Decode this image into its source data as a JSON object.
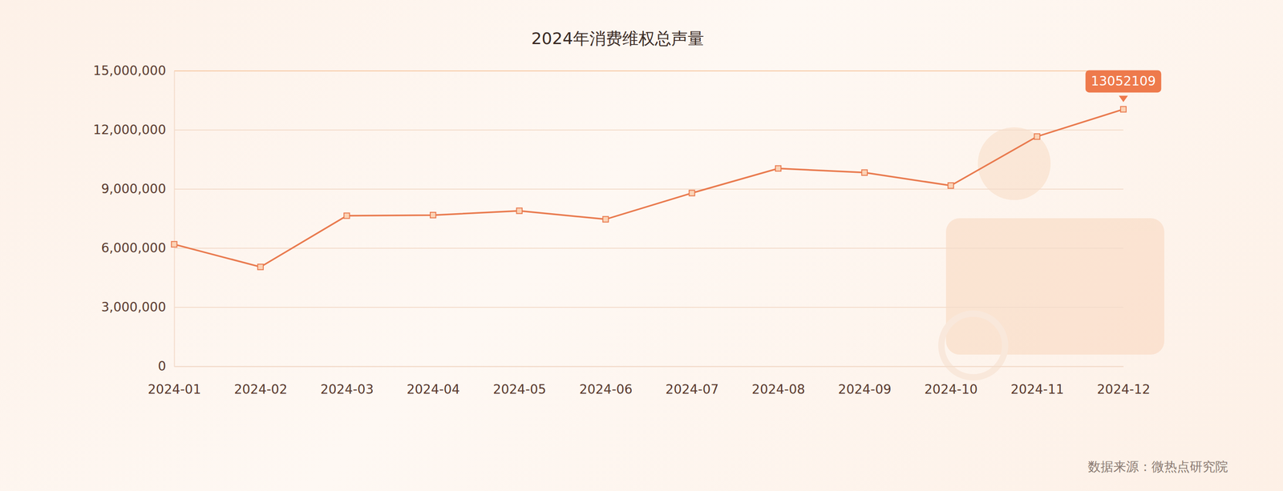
{
  "chart_data": {
    "type": "line",
    "title": "2024年消费维权总声量",
    "categories": [
      "2024-01",
      "2024-02",
      "2024-03",
      "2024-04",
      "2024-05",
      "2024-06",
      "2024-07",
      "2024-08",
      "2024-09",
      "2024-10",
      "2024-11",
      "2024-12"
    ],
    "values": [
      6200000,
      5050000,
      7650000,
      7680000,
      7900000,
      7470000,
      8800000,
      10050000,
      9840000,
      9180000,
      11670000,
      13052109
    ],
    "value_labels": [
      null,
      null,
      null,
      null,
      null,
      null,
      null,
      null,
      null,
      null,
      null,
      "13052109"
    ],
    "color": "#e97a4e",
    "marker": "square",
    "grid": true,
    "ylim": [
      0,
      15000000
    ],
    "yticks": [
      0,
      {
        "value": 3000000,
        "label": "3,000,000"
      },
      {
        "value": 6000000,
        "label": "6,000,000"
      },
      {
        "value": 9000000,
        "label": "9,000,000"
      },
      {
        "value": 12000000,
        "label": "12,000,000"
      },
      {
        "value": 15000000,
        "label": "15,000,000"
      }
    ],
    "source": "数据来源：微热点研究院"
  }
}
